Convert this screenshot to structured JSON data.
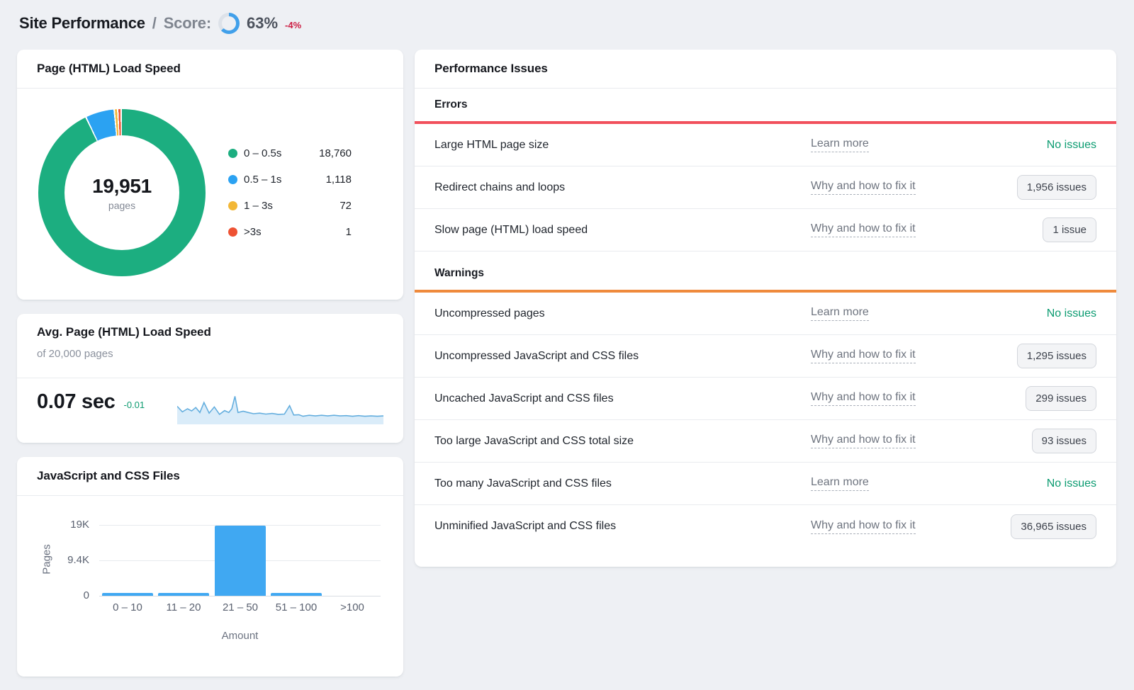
{
  "header": {
    "title": "Site Performance",
    "separator": "/",
    "score_label": "Score:",
    "score_value": "63%",
    "score_percent": 63,
    "score_delta": "-4%",
    "score_gauge_color": "#41a0ea",
    "score_delta_color": "#cc1c42"
  },
  "load_speed_card": {
    "title": "Page (HTML) Load Speed",
    "center_value": "19,951",
    "center_label": "pages",
    "legend": [
      {
        "label": "0 – 0.5s",
        "value": "18,760",
        "color": "#1cae80"
      },
      {
        "label": "0.5 – 1s",
        "value": "1,118",
        "color": "#2ba2f2"
      },
      {
        "label": "1 – 3s",
        "value": "72",
        "color": "#f2b736"
      },
      {
        "label": ">3s",
        "value": "1",
        "color": "#ee5233"
      }
    ]
  },
  "avg_speed_card": {
    "title": "Avg. Page (HTML) Load Speed",
    "subtitle": "of 20,000 pages",
    "value": "0.07 sec",
    "delta": "-0.01",
    "delta_color": "#0d9b70"
  },
  "files_card": {
    "title": "JavaScript and CSS Files",
    "ylabel": "Pages",
    "xlabel": "Amount",
    "ytick_labels": [
      "19K",
      "9.4K",
      "0"
    ],
    "categories": [
      "0 – 10",
      "11 – 20",
      "21 – 50",
      "51 – 100",
      ">100"
    ],
    "bar_color": "#40a8f2"
  },
  "issues_panel": {
    "title": "Performance Issues",
    "sections": [
      {
        "name": "Errors",
        "accent_color": "#f1505c",
        "rows": [
          {
            "label": "Large HTML page size",
            "link": "Learn more",
            "status": "No issues"
          },
          {
            "label": "Redirect chains and loops",
            "link": "Why and how to fix it",
            "status": "1,956 issues"
          },
          {
            "label": "Slow page (HTML) load speed",
            "link": "Why and how to fix it",
            "status": "1 issue"
          }
        ]
      },
      {
        "name": "Warnings",
        "accent_color": "#ef8a3c",
        "rows": [
          {
            "label": "Uncompressed pages",
            "link": "Learn more",
            "status": "No issues"
          },
          {
            "label": "Uncompressed JavaScript and CSS files",
            "link": "Why and how to fix it",
            "status": "1,295 issues"
          },
          {
            "label": "Uncached JavaScript and CSS files",
            "link": "Why and how to fix it",
            "status": "299 issues"
          },
          {
            "label": "Too large JavaScript and CSS total size",
            "link": "Why and how to fix it",
            "status": "93 issues"
          },
          {
            "label": "Too many JavaScript and CSS files",
            "link": "Learn more",
            "status": "No issues"
          },
          {
            "label": "Unminified JavaScript and CSS files",
            "link": "Why and how to fix it",
            "status": "36,965 issues"
          }
        ]
      }
    ]
  },
  "chart_data": [
    {
      "type": "pie",
      "title": "Page (HTML) Load Speed",
      "categories": [
        "0 – 0.5s",
        "0.5 – 1s",
        "1 – 3s",
        ">3s"
      ],
      "values": [
        18760,
        1118,
        72,
        1
      ],
      "colors": [
        "#1cae80",
        "#2ba2f2",
        "#f2b736",
        "#ee5233"
      ],
      "center_label": "19,951",
      "center_sublabel": "pages",
      "legend_position": "right"
    },
    {
      "type": "line",
      "title": "Avg. Page (HTML) Load Speed trend",
      "current_value": "0.07 sec",
      "delta": "-0.01",
      "line_color": "#64aede",
      "fill_color": "#daecf9",
      "points_norm": [
        [
          0,
          42
        ],
        [
          2.5,
          60
        ],
        [
          5,
          50
        ],
        [
          7,
          57
        ],
        [
          9,
          46
        ],
        [
          11,
          62
        ],
        [
          13,
          30
        ],
        [
          15.5,
          64
        ],
        [
          18,
          44
        ],
        [
          20.5,
          68
        ],
        [
          23,
          56
        ],
        [
          25,
          62
        ],
        [
          26.5,
          50
        ],
        [
          28,
          10
        ],
        [
          29.5,
          62
        ],
        [
          32,
          58
        ],
        [
          34.5,
          62
        ],
        [
          37,
          66
        ],
        [
          40,
          64
        ],
        [
          43,
          67
        ],
        [
          46,
          65
        ],
        [
          49,
          68
        ],
        [
          52,
          67
        ],
        [
          54.5,
          40
        ],
        [
          56.5,
          70
        ],
        [
          59,
          69
        ],
        [
          61,
          74
        ],
        [
          64,
          71
        ],
        [
          67,
          73
        ],
        [
          70,
          71
        ],
        [
          73,
          73
        ],
        [
          76,
          71
        ],
        [
          79,
          73
        ],
        [
          82,
          72
        ],
        [
          85,
          74
        ],
        [
          88,
          72
        ],
        [
          91,
          74
        ],
        [
          94,
          73
        ],
        [
          97,
          74
        ],
        [
          100,
          73
        ]
      ]
    },
    {
      "type": "bar",
      "title": "JavaScript and CSS Files",
      "categories": [
        "0 – 10",
        "11 – 20",
        "21 – 50",
        "51 – 100",
        ">100"
      ],
      "values": [
        350,
        400,
        18900,
        350,
        0
      ],
      "xlabel": "Amount",
      "ylabel": "Pages",
      "yticks": [
        19000,
        9400,
        0
      ],
      "ylim": [
        0,
        19000
      ],
      "grid": true,
      "legend_position": "none"
    }
  ]
}
